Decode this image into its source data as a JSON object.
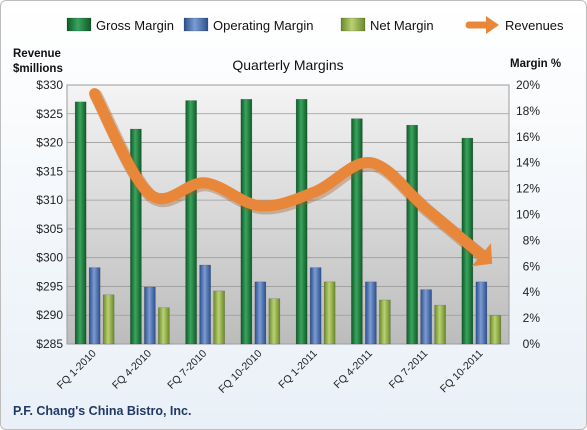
{
  "chart_data": {
    "type": "bar",
    "title": "Quarterly Margins",
    "left_axis_label": [
      "Revenue",
      "$millions"
    ],
    "right_axis_label": "Margin %",
    "footer": "P.F. Chang's China Bistro, Inc.",
    "categories": [
      "FQ 1-2010",
      "FQ 4-2010",
      "FQ 7-2010",
      "FQ 10-2010",
      "FQ 1-2011",
      "FQ 4-2011",
      "FQ 7-2011",
      "FQ 10-2011"
    ],
    "left_ticks": [
      "$285",
      "$290",
      "$295",
      "$300",
      "$305",
      "$310",
      "$315",
      "$320",
      "$325",
      "$330"
    ],
    "right_ticks": [
      "0%",
      "2%",
      "4%",
      "6%",
      "8%",
      "10%",
      "12%",
      "14%",
      "16%",
      "18%",
      "20%"
    ],
    "left_ylim": [
      285,
      330
    ],
    "right_ylim": [
      0,
      20
    ],
    "series": [
      {
        "name": "Gross Margin",
        "axis": "right",
        "color": "#1e7a3c",
        "values": [
          18.7,
          16.6,
          18.8,
          18.9,
          18.9,
          17.4,
          16.9,
          15.9
        ]
      },
      {
        "name": "Operating Margin",
        "axis": "right",
        "color": "#4a6fb0",
        "values": [
          5.9,
          4.4,
          6.1,
          4.8,
          5.9,
          4.8,
          4.2,
          4.8
        ]
      },
      {
        "name": "Net Margin",
        "axis": "right",
        "color": "#8fad44",
        "values": [
          3.8,
          2.8,
          4.1,
          3.5,
          4.8,
          3.4,
          3.0,
          2.2
        ]
      },
      {
        "name": "Revenues",
        "axis": "left",
        "type": "line",
        "color": "#e8873a",
        "values": [
          328.5,
          311.0,
          313.0,
          309.0,
          311.5,
          316.5,
          308.5,
          300.5
        ]
      }
    ],
    "legend_position": "top",
    "grid": true
  }
}
